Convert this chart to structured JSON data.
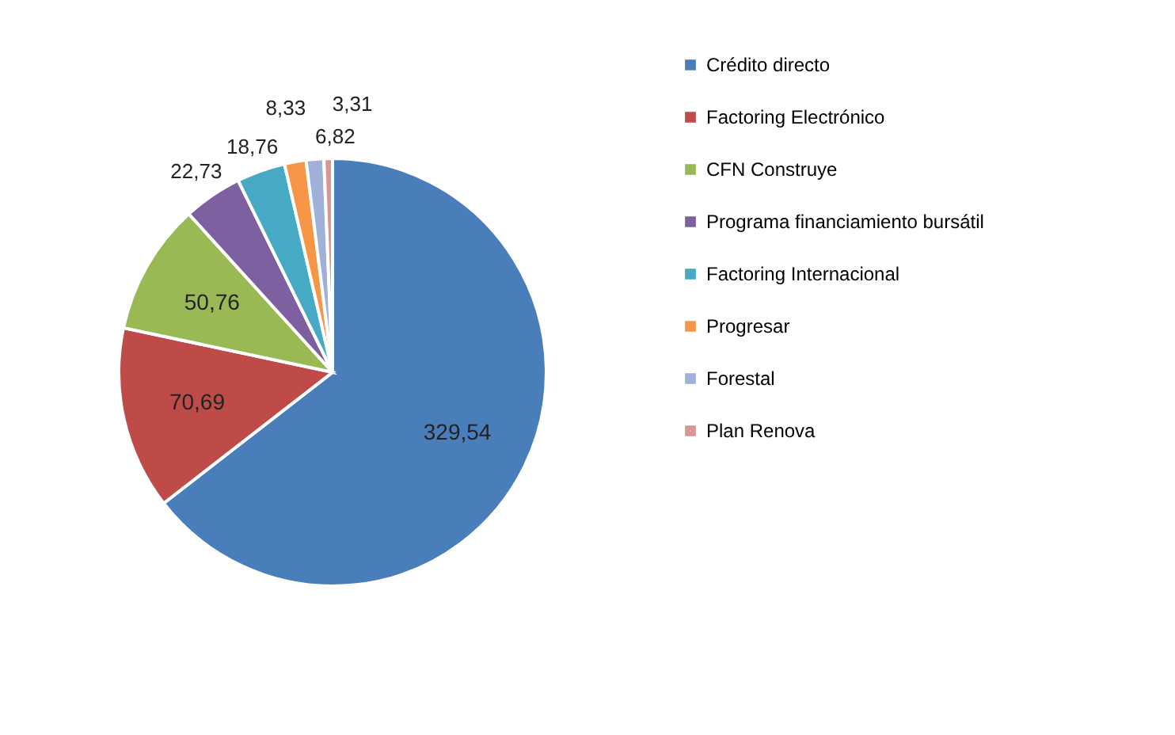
{
  "chart_data": {
    "type": "pie",
    "categories": [
      "Crédito directo",
      "Factoring Electrónico",
      "CFN Construye",
      "Programa financiamiento bursátil",
      "Factoring Internacional",
      "Progresar",
      "Forestal",
      "Plan Renova"
    ],
    "values": [
      329.54,
      70.69,
      50.76,
      22.73,
      18.76,
      8.33,
      6.82,
      3.31
    ],
    "value_labels": [
      "329,54",
      "70,69",
      "50,76",
      "22,73",
      "18,76",
      "8,33",
      "6,82",
      "3,31"
    ],
    "colors": [
      "#4a7ebb",
      "#be4b48",
      "#98b954",
      "#7d60a0",
      "#46aac5",
      "#f79646",
      "#9fb1d8",
      "#d99694"
    ],
    "legend": "right"
  }
}
